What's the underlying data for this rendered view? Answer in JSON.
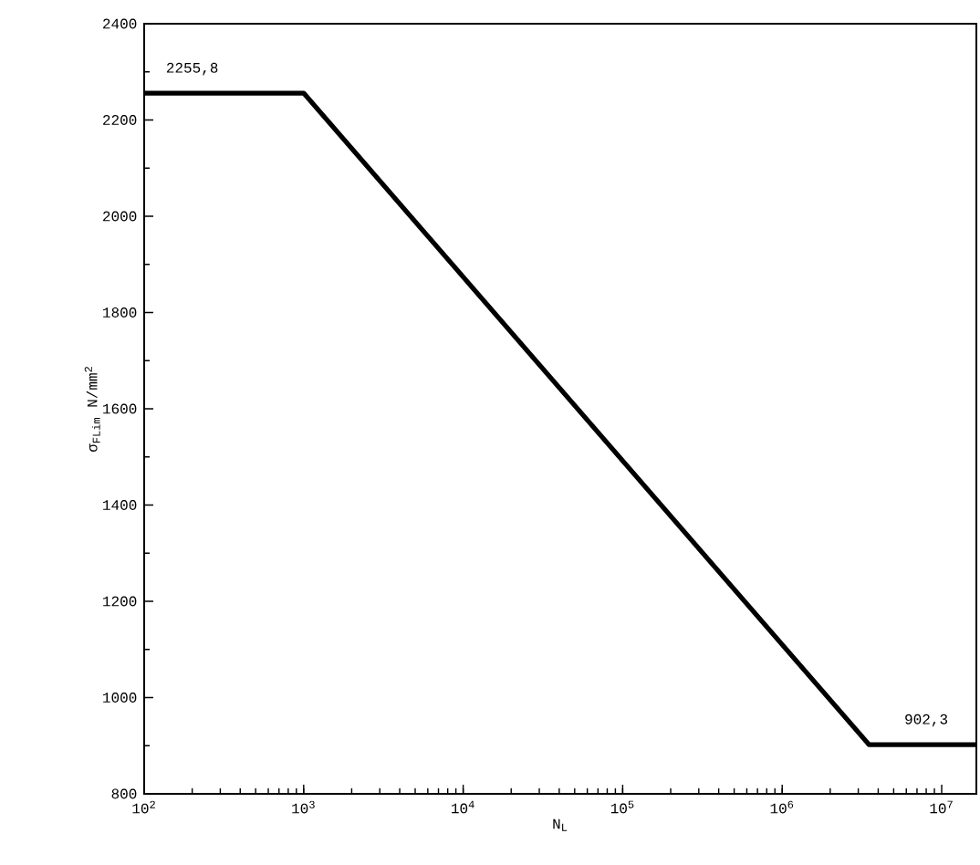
{
  "chart_data": {
    "type": "line",
    "xlabel": "N$_{L}$",
    "ylabel": "σ$_{FLim}$ N/mm$^{2}$",
    "log": "x",
    "x": [
      100,
      1000,
      3500000,
      16500000
    ],
    "series": [
      {
        "color": "#000000",
        "values": [
          2255.8,
          2255.8,
          902.3,
          902.3
        ]
      }
    ],
    "xlim": [
      100,
      16500000
    ],
    "ylim": [
      800,
      2400
    ],
    "xticks": [
      {
        "value": 100,
        "label": "10$^{2}$"
      },
      {
        "value": 1000,
        "label": "10$^{3}$"
      },
      {
        "value": 10000,
        "label": "10$^{4}$"
      },
      {
        "value": 100000,
        "label": "10$^{5}$"
      },
      {
        "value": 1000000,
        "label": "10$^{6}$"
      },
      {
        "value": 10000000,
        "label": "10$^{7}$"
      }
    ],
    "yticks": [
      800,
      1000,
      1200,
      1400,
      1600,
      1800,
      2000,
      2200,
      2400
    ],
    "annotations": [
      {
        "text": "2255,8",
        "x": 200,
        "y": 2255.8
      },
      {
        "text": "902,3",
        "x": 8000000,
        "y": 902.3
      }
    ],
    "grid": false,
    "legend": false,
    "marker": "none",
    "line_style": "solid"
  }
}
